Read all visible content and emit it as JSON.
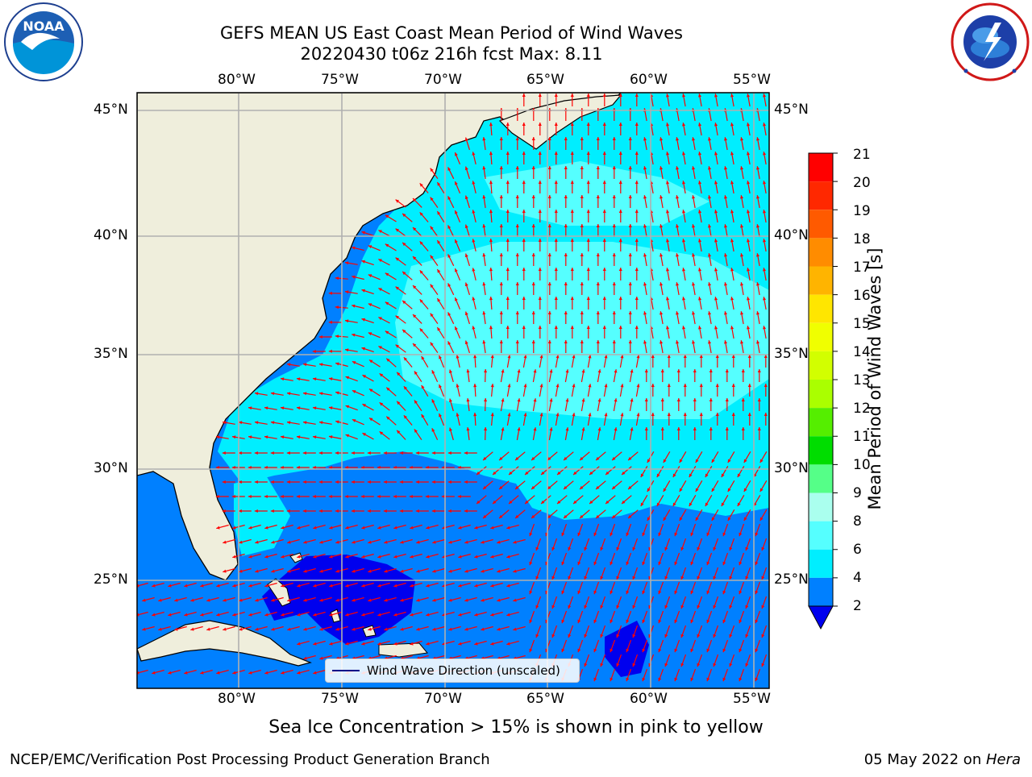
{
  "header": {
    "title_line1": "GEFS MEAN US East Coast Mean Period of Wind Waves",
    "title_line2": "20220430 t06z 216h fcst   Max: 8.11"
  },
  "logos": {
    "left": {
      "name": "noaa-logo",
      "text": "NOAA",
      "ring_text": "NATIONAL OCEANIC AND ATMOSPHERIC ADMINISTRATION · U.S. DEPARTMENT OF COMMERCE"
    },
    "right": {
      "name": "nws-logo",
      "ring_text": "NATIONAL WEATHER SERVICE"
    }
  },
  "map": {
    "lon_labels": [
      "80°W",
      "75°W",
      "70°W",
      "65°W",
      "60°W",
      "55°W"
    ],
    "lat_labels": [
      "45°N",
      "40°N",
      "35°N",
      "30°N",
      "25°N"
    ],
    "legend": "Wind Wave Direction (unscaled)"
  },
  "colorbar": {
    "label": "Mean Period of Wind Waves [s]",
    "ticks": [
      "21",
      "20",
      "19",
      "18",
      "17",
      "16",
      "15",
      "14",
      "13",
      "12",
      "11",
      "10",
      "9",
      "8",
      "6",
      "4",
      "2"
    ],
    "levels": [
      {
        "from": 20,
        "to": 21,
        "color": "#ff0000"
      },
      {
        "from": 19,
        "to": 20,
        "color": "#ff2800"
      },
      {
        "from": 18,
        "to": 19,
        "color": "#ff5a00"
      },
      {
        "from": 17,
        "to": 18,
        "color": "#ff8c00"
      },
      {
        "from": 16,
        "to": 17,
        "color": "#ffb400"
      },
      {
        "from": 15,
        "to": 16,
        "color": "#ffe600"
      },
      {
        "from": 14,
        "to": 15,
        "color": "#f0ff00"
      },
      {
        "from": 13,
        "to": 14,
        "color": "#d2ff00"
      },
      {
        "from": 12,
        "to": 13,
        "color": "#aaff00"
      },
      {
        "from": 11,
        "to": 12,
        "color": "#55ee00"
      },
      {
        "from": 10,
        "to": 11,
        "color": "#00dd00"
      },
      {
        "from": 9,
        "to": 10,
        "color": "#55ff88"
      },
      {
        "from": 8,
        "to": 9,
        "color": "#aaffee"
      },
      {
        "from": 6,
        "to": 8,
        "color": "#55ffff"
      },
      {
        "from": 4,
        "to": 6,
        "color": "#00eeff"
      },
      {
        "from": 2,
        "to": 4,
        "color": "#0080ff"
      }
    ],
    "under_color": "#0000ee"
  },
  "notes": {
    "sea_ice": "Sea Ice Concentration > 15% is shown in pink to yellow"
  },
  "footer": {
    "left": "NCEP/EMC/Verification Post Processing Product Generation Branch",
    "right_date": "05 May 2022 on ",
    "right_host": "Hera"
  },
  "colors": {
    "land": "#efeedc",
    "ocean_short": "#0080ff",
    "ocean_mid": "#00eeff",
    "ocean_long": "#55ffff",
    "ocean_min": "#0000ee",
    "arrow": "#ff0000",
    "grid": "#b0b0b0"
  }
}
